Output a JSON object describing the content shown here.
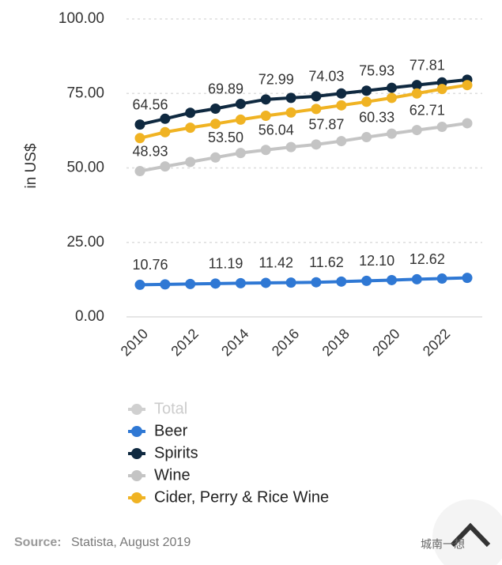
{
  "chart_data": {
    "type": "line",
    "y_axis_label": "in US$",
    "x": [
      2010,
      2011,
      2012,
      2013,
      2014,
      2015,
      2016,
      2017,
      2018,
      2019,
      2020,
      2021,
      2022,
      2023
    ],
    "xlim": [
      2010,
      2023
    ],
    "xticks": [
      2010,
      2012,
      2014,
      2016,
      2018,
      2020,
      2022
    ],
    "ylim": [
      0,
      100
    ],
    "yticks": [
      {
        "value": 0,
        "label": "0.00"
      },
      {
        "value": 25,
        "label": "25.00"
      },
      {
        "value": 50,
        "label": "50.00"
      },
      {
        "value": 75,
        "label": "75.00"
      },
      {
        "value": 100,
        "label": "100.00"
      }
    ],
    "grid": true,
    "inactive_legend": [
      {
        "name": "Total",
        "color": "#d0d0d0"
      }
    ],
    "series": [
      {
        "name": "Beer",
        "color": "#2f78d4",
        "values": [
          10.76,
          10.9,
          11.05,
          11.19,
          11.3,
          11.42,
          11.5,
          11.62,
          11.85,
          12.1,
          12.35,
          12.62,
          12.85,
          13.1
        ],
        "value_labels": [
          "10.76",
          null,
          null,
          "11.19",
          null,
          "11.42",
          null,
          "11.62",
          null,
          "12.10",
          null,
          "12.62",
          null,
          null
        ]
      },
      {
        "name": "Spirits",
        "color": "#0f2940",
        "values": [
          64.56,
          66.5,
          68.5,
          69.89,
          71.5,
          72.99,
          73.5,
          74.03,
          75.0,
          75.93,
          76.9,
          77.81,
          78.7,
          79.6
        ],
        "value_labels": [
          "64.56",
          null,
          null,
          "69.89",
          null,
          "72.99",
          null,
          "74.03",
          null,
          "75.93",
          null,
          "77.81",
          null,
          null
        ]
      },
      {
        "name": "Wine",
        "color": "#c4c4c4",
        "values": [
          48.93,
          50.5,
          52,
          53.5,
          55,
          56.04,
          57,
          57.87,
          59,
          60.33,
          61.5,
          62.71,
          63.8,
          65
        ],
        "value_labels": [
          "48.93",
          null,
          null,
          "53.50",
          null,
          "56.04",
          null,
          "57.87",
          null,
          "60.33",
          null,
          "62.71",
          null,
          null
        ]
      },
      {
        "name": "Cider, Perry & Rice Wine",
        "color": "#f0b323",
        "values": [
          60,
          62,
          63.5,
          64.8,
          66.2,
          67.5,
          68.6,
          69.8,
          71,
          72.2,
          73.5,
          75,
          76.5,
          77.8
        ]
      }
    ],
    "source_label": "Source:",
    "source": "Statista, August 2019",
    "watermark": "城南一想"
  }
}
